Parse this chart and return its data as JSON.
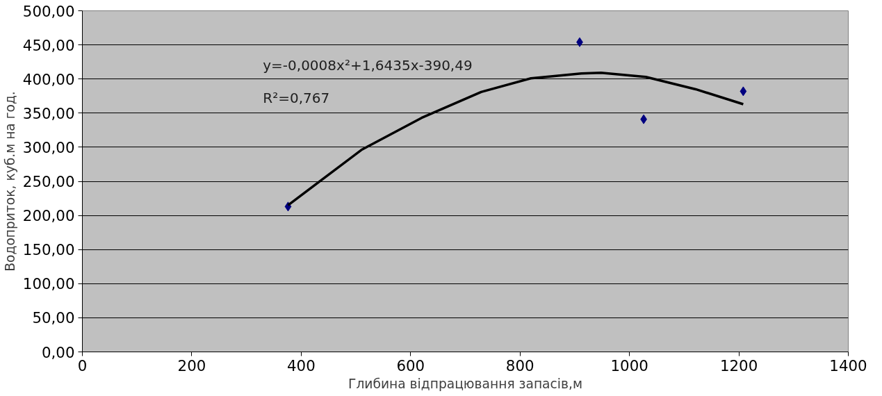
{
  "chart_data": {
    "type": "scatter",
    "xlabel": "Глибина відпрацювання запасів,м",
    "ylabel": "Водоприток, куб.м на год.",
    "annotations": [
      "y=-0,0008x²+1,6435x-390,49",
      "R²=0,767"
    ],
    "series": [
      {
        "color": "#000080",
        "marker": "diamond",
        "x": [
          376,
          909,
          1026,
          1208
        ],
        "values": [
          213,
          454,
          341,
          382
        ]
      },
      {
        "type": "line",
        "color": "#000000",
        "line_style": "solid",
        "x": [
          376,
          510,
          620,
          729,
          820,
          912,
          948,
          1030,
          1121,
          1208
        ],
        "values": [
          215,
          296,
          343,
          381,
          401,
          408,
          409,
          403,
          385,
          363
        ]
      }
    ],
    "xlim": [
      0,
      1400
    ],
    "xticks": [
      0,
      200,
      400,
      600,
      800,
      1000,
      1200,
      1400
    ],
    "ylim": [
      0,
      500
    ],
    "yticks": [
      {
        "value": 0,
        "label": "0,00"
      },
      {
        "value": 50,
        "label": "50,00"
      },
      {
        "value": 100,
        "label": "100,00"
      },
      {
        "value": 150,
        "label": "150,00"
      },
      {
        "value": 200,
        "label": "200,00"
      },
      {
        "value": 250,
        "label": "250,00"
      },
      {
        "value": 300,
        "label": "300,00"
      },
      {
        "value": 350,
        "label": "350,00"
      },
      {
        "value": 400,
        "label": "400,00"
      },
      {
        "value": 450,
        "label": "450,00"
      },
      {
        "value": 500,
        "label": "500,00"
      }
    ],
    "grid": "y"
  }
}
